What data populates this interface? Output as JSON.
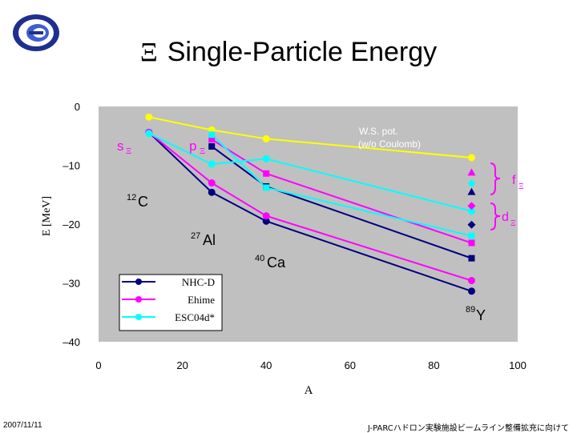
{
  "page": {
    "title": "Single-Particle Energy",
    "title_symbol": "Ξ",
    "footer_date": "2007/11/11",
    "footer_note": "J-PARCハドロン実験施設ビームライン整備拡充に向けて"
  },
  "chart_data": {
    "type": "line",
    "xlabel": "A",
    "ylabel": "E [MeV]",
    "xlim": [
      0,
      100
    ],
    "ylim": [
      -40,
      0
    ],
    "x_ticks": [
      0,
      20,
      40,
      60,
      80,
      100
    ],
    "y_ticks": [
      0,
      -10,
      -20,
      -30,
      -40
    ],
    "y_tick_labels": [
      "0",
      "–10",
      "–20",
      "–30",
      "–40"
    ],
    "grid": false,
    "plot_background": "#c0c0c0",
    "legend": {
      "placement": "bottom-left",
      "entries": [
        {
          "label": "NHC-D",
          "color": "#000080"
        },
        {
          "label": "Ehime",
          "color": "#ff00ff"
        },
        {
          "label": "ESC04d*",
          "color": "#00ffff"
        }
      ]
    },
    "series": [
      {
        "name": "W.S. pot.",
        "color": "#ffff00",
        "marker": "circle",
        "points": [
          [
            12,
            -1.8
          ],
          [
            27,
            -4.0
          ],
          [
            40,
            -5.5
          ],
          [
            89,
            -8.7
          ]
        ]
      },
      {
        "color": "#0000ff",
        "marker": "dot",
        "points": [
          [
            12,
            -4.4
          ]
        ]
      },
      {
        "color": "#000080",
        "marker": "circle",
        "points": [
          [
            12,
            -4.4
          ],
          [
            27,
            -14.6
          ],
          [
            40,
            -19.5
          ],
          [
            89,
            -31.4
          ]
        ]
      },
      {
        "color": "#000080",
        "marker": "square",
        "points": [
          [
            27,
            -6.8
          ],
          [
            40,
            -13.6
          ],
          [
            89,
            -25.8
          ]
        ]
      },
      {
        "color": "#ff00ff",
        "marker": "circle",
        "points": [
          [
            12,
            -4.4
          ],
          [
            27,
            -13.0
          ],
          [
            40,
            -18.6
          ],
          [
            89,
            -29.6
          ]
        ]
      },
      {
        "color": "#ff00ff",
        "marker": "square",
        "points": [
          [
            27,
            -5.6
          ],
          [
            40,
            -11.4
          ],
          [
            89,
            -23.2
          ]
        ]
      },
      {
        "color": "#00ffff",
        "marker": "circle",
        "points": [
          [
            12,
            -4.6
          ],
          [
            27,
            -9.8
          ],
          [
            40,
            -8.9
          ],
          [
            89,
            -17.8
          ]
        ]
      },
      {
        "color": "#00ffff",
        "marker": "square",
        "points": [
          [
            27,
            -4.8
          ],
          [
            40,
            -13.8
          ],
          [
            89,
            -22.0
          ]
        ]
      },
      {
        "color": "#ff00ff",
        "marker": "triangle",
        "points": [
          [
            89,
            -11.2
          ]
        ]
      },
      {
        "color": "#00ffff",
        "marker": "diamond",
        "points": [
          [
            89,
            -13.1
          ]
        ]
      },
      {
        "color": "#000080",
        "marker": "triangle",
        "points": [
          [
            89,
            -14.5
          ]
        ]
      },
      {
        "color": "#ff00ff",
        "marker": "diamond",
        "points": [
          [
            89,
            -16.9
          ]
        ]
      },
      {
        "color": "#000080",
        "marker": "diamond",
        "points": [
          [
            89,
            -20.1
          ]
        ]
      }
    ],
    "annotations": {
      "ws_line1": "W.S. pot.",
      "ws_line2": "(w/o Coulomb)",
      "s_label": "s",
      "p_label": "p",
      "f_label": "f",
      "d_label": "d",
      "xi_sub": "Ξ",
      "c12_mass": "12",
      "c12_elem": "C",
      "al27_mass": "27",
      "al27_elem": "Al",
      "ca40_mass": "40",
      "ca40_elem": "Ca",
      "y89_mass": "89",
      "y89_elem": "Y"
    }
  }
}
